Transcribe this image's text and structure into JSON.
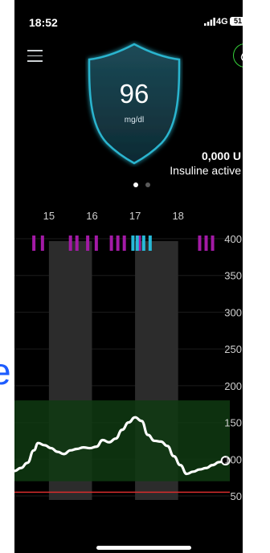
{
  "status_bar": {
    "time": "18:52",
    "network": "4G",
    "battery": "51"
  },
  "header": {
    "menu_icon": "menu-icon",
    "drop_icon": "drop-icon"
  },
  "glucose": {
    "value": "96",
    "unit": "mg/dl"
  },
  "insulin": {
    "amount": "0,000 U",
    "label": "Insuline active"
  },
  "colors": {
    "shield": "#2bb5cf",
    "target_range": "#0f3a12",
    "curve": "#ffffff",
    "low_line": "#d82c2c",
    "bolus": "#a31aa6",
    "basal": "#27b9d8",
    "drop_ring": "#35d03a"
  },
  "chart_data": {
    "type": "line",
    "x_ticks": [
      "15",
      "16",
      "17",
      "18"
    ],
    "y_ticks": [
      400,
      350,
      300,
      250,
      200,
      150,
      100,
      50
    ],
    "ylim": [
      40,
      400
    ],
    "target_range": [
      70,
      180
    ],
    "low_threshold": 55,
    "xlim": [
      14.2,
      19.2
    ],
    "series": [
      {
        "x": [
          14.2,
          14.35,
          14.5,
          14.65,
          14.75,
          14.9,
          15.05,
          15.2,
          15.35,
          15.5,
          15.65,
          15.8,
          15.95,
          16.1,
          16.25,
          16.4,
          16.55,
          16.7,
          16.85,
          17.0,
          17.15,
          17.3,
          17.45,
          17.6,
          17.75,
          17.9,
          18.05,
          18.2,
          18.35,
          18.5,
          18.65,
          18.8,
          18.95,
          19.1
        ],
        "y": [
          84,
          88,
          95,
          112,
          122,
          119,
          115,
          110,
          107,
          112,
          114,
          116,
          115,
          117,
          126,
          123,
          128,
          140,
          150,
          157,
          152,
          133,
          125,
          124,
          118,
          104,
          92,
          80,
          83,
          86,
          88,
          92,
          96,
          98
        ]
      }
    ],
    "bolus_marks": [
      14.65,
      14.85,
      15.5,
      15.65,
      15.9,
      16.1,
      16.45,
      16.6,
      16.75,
      17.1,
      18.5,
      18.65,
      18.8
    ],
    "basal_marks": [
      16.95,
      17.05,
      17.2,
      17.35
    ],
    "shaded_bands": [
      [
        15.0,
        16.0
      ],
      [
        17.0,
        18.0
      ]
    ]
  }
}
